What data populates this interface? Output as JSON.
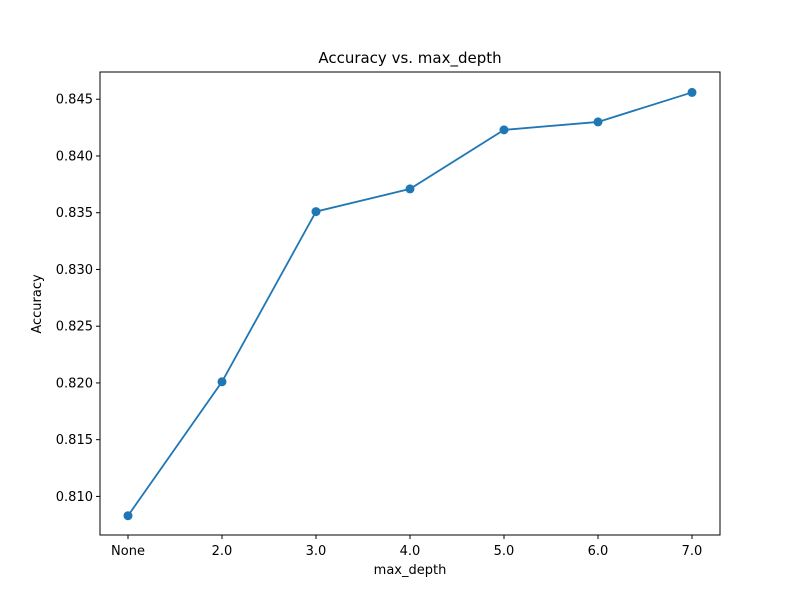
{
  "chart_data": {
    "type": "line",
    "title": "Accuracy vs. max_depth",
    "xlabel": "max_depth",
    "ylabel": "Accuracy",
    "categories": [
      "None",
      "2.0",
      "3.0",
      "4.0",
      "5.0",
      "6.0",
      "7.0"
    ],
    "series": [
      {
        "values": [
          0.8083,
          0.8201,
          0.8351,
          0.8371,
          0.8423,
          0.843,
          0.8456
        ],
        "color": "#1f77b4",
        "marker": "circle"
      }
    ],
    "ylim": [
      0.8066,
      0.8474
    ],
    "yticks": [
      0.81,
      0.815,
      0.82,
      0.825,
      0.83,
      0.835,
      0.84,
      0.845
    ],
    "ytick_labels": [
      "0.810",
      "0.815",
      "0.820",
      "0.825",
      "0.830",
      "0.835",
      "0.840",
      "0.845"
    ],
    "grid": false,
    "legend": "none"
  }
}
